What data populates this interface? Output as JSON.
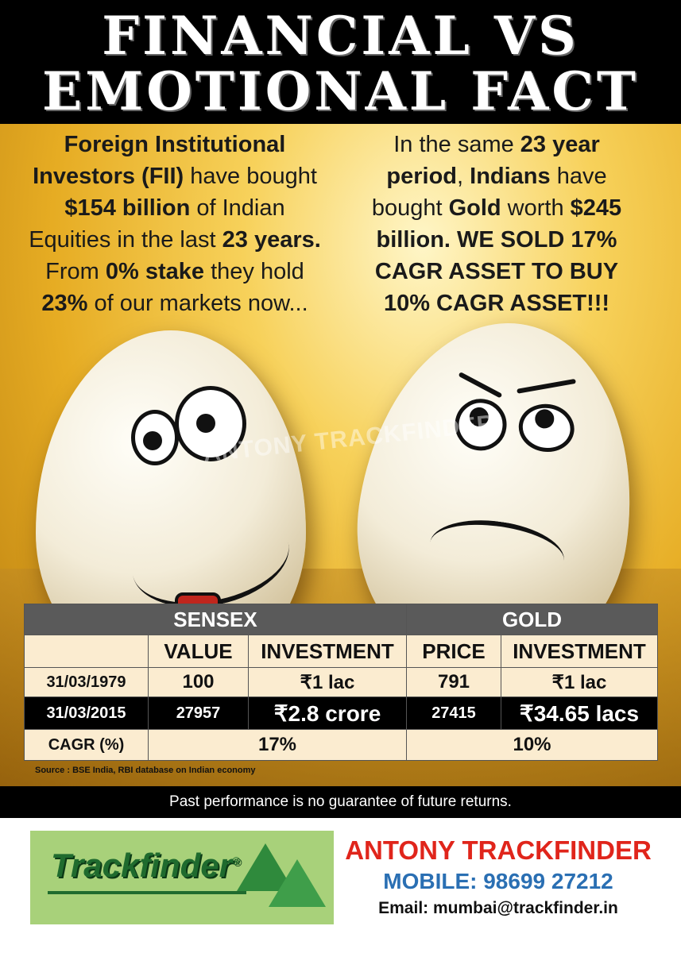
{
  "header": {
    "title_line1": "FINANCIAL VS",
    "title_line2": "EMOTIONAL FACT"
  },
  "left_text": {
    "l1": "Foreign Institutional",
    "l2b": "Investors (FII)",
    "l2": " have bought",
    "l3b": "$154 billion",
    "l3": " of Indian",
    "l4": "Equities in the last ",
    "l4b": "23 years.",
    "l5": "From ",
    "l5b": "0% stake",
    "l5c": " they hold",
    "l6b": "23%",
    "l6": " of our markets now..."
  },
  "right_text": {
    "l1": "In the same ",
    "l1b": "23 year",
    "l2b": "period",
    "l2": ", ",
    "l2c": "Indians",
    "l2d": " have",
    "l3": "bought ",
    "l3b": "Gold",
    "l3c": " worth ",
    "l3d": "$245",
    "l4": "billion. WE SOLD 17%",
    "l5": "CAGR ASSET TO BUY",
    "l6": "10% CAGR ASSET!!!"
  },
  "watermark": "ANTONY TRACKFINDER",
  "table": {
    "group_sensex": "SENSEX",
    "group_gold": "GOLD",
    "col_value": "VALUE",
    "col_investment": "INVESTMENT",
    "col_price": "PRICE",
    "col_investment_gold": "INVESTMENT",
    "rows": [
      {
        "date": "31/03/1979",
        "value": "100",
        "sensex_inv": "₹1 lac",
        "price": "791",
        "gold_inv": "₹1 lac"
      },
      {
        "date": "31/03/2015",
        "value": "27957",
        "sensex_inv": "₹2.8 crore",
        "price": "27415",
        "gold_inv": "₹34.65 lacs"
      }
    ],
    "cagr_label": "CAGR (%)",
    "cagr_sensex": "17%",
    "cagr_gold": "10%"
  },
  "source": "Source : BSE India, RBI database on Indian economy",
  "disclaimer": "Past performance is no guarantee of future returns.",
  "logo": {
    "text": "Trackfinder",
    "mark": "®"
  },
  "contact": {
    "name": "ANTONY TRACKFINDER",
    "mobile": "MOBILE: 98699 27212",
    "email": "Email: mumbai@trackfinder.in"
  },
  "colors": {
    "name_red": "#e0251b",
    "mobile_blue": "#2a6fb3",
    "logo_green": "#1f6b2e",
    "logo_bg": "#a8d17a"
  }
}
